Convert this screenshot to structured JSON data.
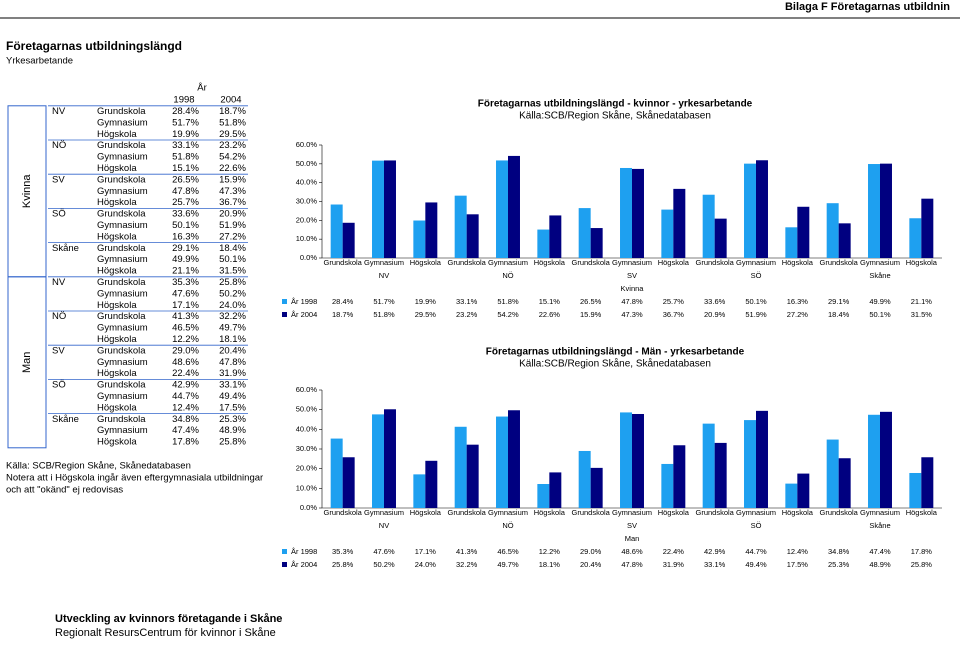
{
  "header": "Bilaga F Företagarnas utbildnin",
  "section": {
    "title": "Företagarnas utbildningslängd",
    "subtitle": "Yrkesarbetande"
  },
  "table": {
    "header": "År",
    "columns": [
      "1998",
      "2004"
    ]
  },
  "notes": [
    "Källa: SCB/Region Skåne, Skånedatabasen",
    "Notera att i Högskola ingår även eftergymnasiala utbildningar",
    "och att \"okänd\" ej redovisas"
  ],
  "footer": [
    "Utveckling av kvinnors företagande i Skåne",
    "Regionalt ResursCentrum för kvinnor i Skåne"
  ],
  "chart_data": [
    {
      "type": "bar",
      "title": "Företagarnas utbildningslängd - kvinnor - yrkesarbetande",
      "subtitle": "Källa:SCB/Region Skåne, Skånedatabasen",
      "x_label": "Kvinna",
      "categories": [
        "Grundskola",
        "Gymnasium",
        "Högskola",
        "Grundskola",
        "Gymnasium",
        "Högskola",
        "Grundskola",
        "Gymnasium",
        "Högskola",
        "Grundskola",
        "Gymnasium",
        "Högskola",
        "Grundskola",
        "Gymnasium",
        "Högskola"
      ],
      "category_groups": [
        "NV",
        "NÖ",
        "SV",
        "SÖ",
        "Skåne"
      ],
      "series": [
        {
          "name": "År 1998",
          "color": "#1ea0f0",
          "values": [
            28.4,
            51.7,
            19.9,
            33.1,
            51.8,
            15.1,
            26.5,
            47.8,
            25.7,
            33.6,
            50.1,
            16.3,
            29.1,
            49.9,
            21.1
          ],
          "value_labels": [
            "28.4%",
            "51.7%",
            "19.9%",
            "33.1%",
            "51.8%",
            "15.1%",
            "26.5%",
            "47.8%",
            "25.7%",
            "33.6%",
            "50.1%",
            "16.3%",
            "29.1%",
            "49.9%",
            "21.1%"
          ]
        },
        {
          "name": "År 2004",
          "color": "#000080",
          "values": [
            18.7,
            51.8,
            29.5,
            23.2,
            54.2,
            22.6,
            15.9,
            47.3,
            36.7,
            20.9,
            51.9,
            27.2,
            18.4,
            50.1,
            31.5
          ],
          "value_labels": [
            "18.7%",
            "51.8%",
            "29.5%",
            "23.2%",
            "54.2%",
            "22.6%",
            "15.9%",
            "47.3%",
            "36.7%",
            "20.9%",
            "51.9%",
            "27.2%",
            "18.4%",
            "50.1%",
            "31.5%"
          ]
        }
      ],
      "ylim": [
        0,
        60
      ],
      "yticks": [
        {
          "value": 0,
          "label": "0.0%"
        },
        {
          "value": 10,
          "label": "10.0%"
        },
        {
          "value": 20,
          "label": "20.0%"
        },
        {
          "value": 30,
          "label": "30.0%"
        },
        {
          "value": 40,
          "label": "40.0%"
        },
        {
          "value": 50,
          "label": "50.0%"
        },
        {
          "value": 60,
          "label": "60.0%"
        }
      ]
    },
    {
      "type": "bar",
      "title": "Företagarnas utbildningslängd - Män - yrkesarbetande",
      "subtitle": "Källa:SCB/Region Skåne, Skånedatabasen",
      "x_label": "Man",
      "categories": [
        "Grundskola",
        "Gymnasium",
        "Högskola",
        "Grundskola",
        "Gymnasium",
        "Högskola",
        "Grundskola",
        "Gymnasium",
        "Högskola",
        "Grundskola",
        "Gymnasium",
        "Högskola",
        "Grundskola",
        "Gymnasium",
        "Högskola"
      ],
      "category_groups": [
        "NV",
        "NÖ",
        "SV",
        "SÖ",
        "Skåne"
      ],
      "series": [
        {
          "name": "År 1998",
          "color": "#1ea0f0",
          "values": [
            35.3,
            47.6,
            17.1,
            41.3,
            46.5,
            12.2,
            29.0,
            48.6,
            22.4,
            42.9,
            44.7,
            12.4,
            34.8,
            47.4,
            17.8
          ],
          "value_labels": [
            "35.3%",
            "47.6%",
            "17.1%",
            "41.3%",
            "46.5%",
            "12.2%",
            "29.0%",
            "48.6%",
            "22.4%",
            "42.9%",
            "44.7%",
            "12.4%",
            "34.8%",
            "47.4%",
            "17.8%"
          ]
        },
        {
          "name": "År 2004",
          "color": "#000080",
          "values": [
            25.8,
            50.2,
            24.0,
            32.2,
            49.7,
            18.1,
            20.4,
            47.8,
            31.9,
            33.1,
            49.4,
            17.5,
            25.3,
            48.9,
            25.8
          ],
          "value_labels": [
            "25.8%",
            "50.2%",
            "24.0%",
            "32.2%",
            "49.7%",
            "18.1%",
            "20.4%",
            "47.8%",
            "31.9%",
            "33.1%",
            "49.4%",
            "17.5%",
            "25.3%",
            "48.9%",
            "25.8%"
          ]
        }
      ],
      "ylim": [
        0,
        60
      ],
      "yticks": [
        {
          "value": 0,
          "label": "0.0%"
        },
        {
          "value": 10,
          "label": "10.0%"
        },
        {
          "value": 20,
          "label": "20.0%"
        },
        {
          "value": 30,
          "label": "30.0%"
        },
        {
          "value": 40,
          "label": "40.0%"
        },
        {
          "value": 50,
          "label": "50.0%"
        },
        {
          "value": 60,
          "label": "60.0%"
        }
      ]
    }
  ]
}
